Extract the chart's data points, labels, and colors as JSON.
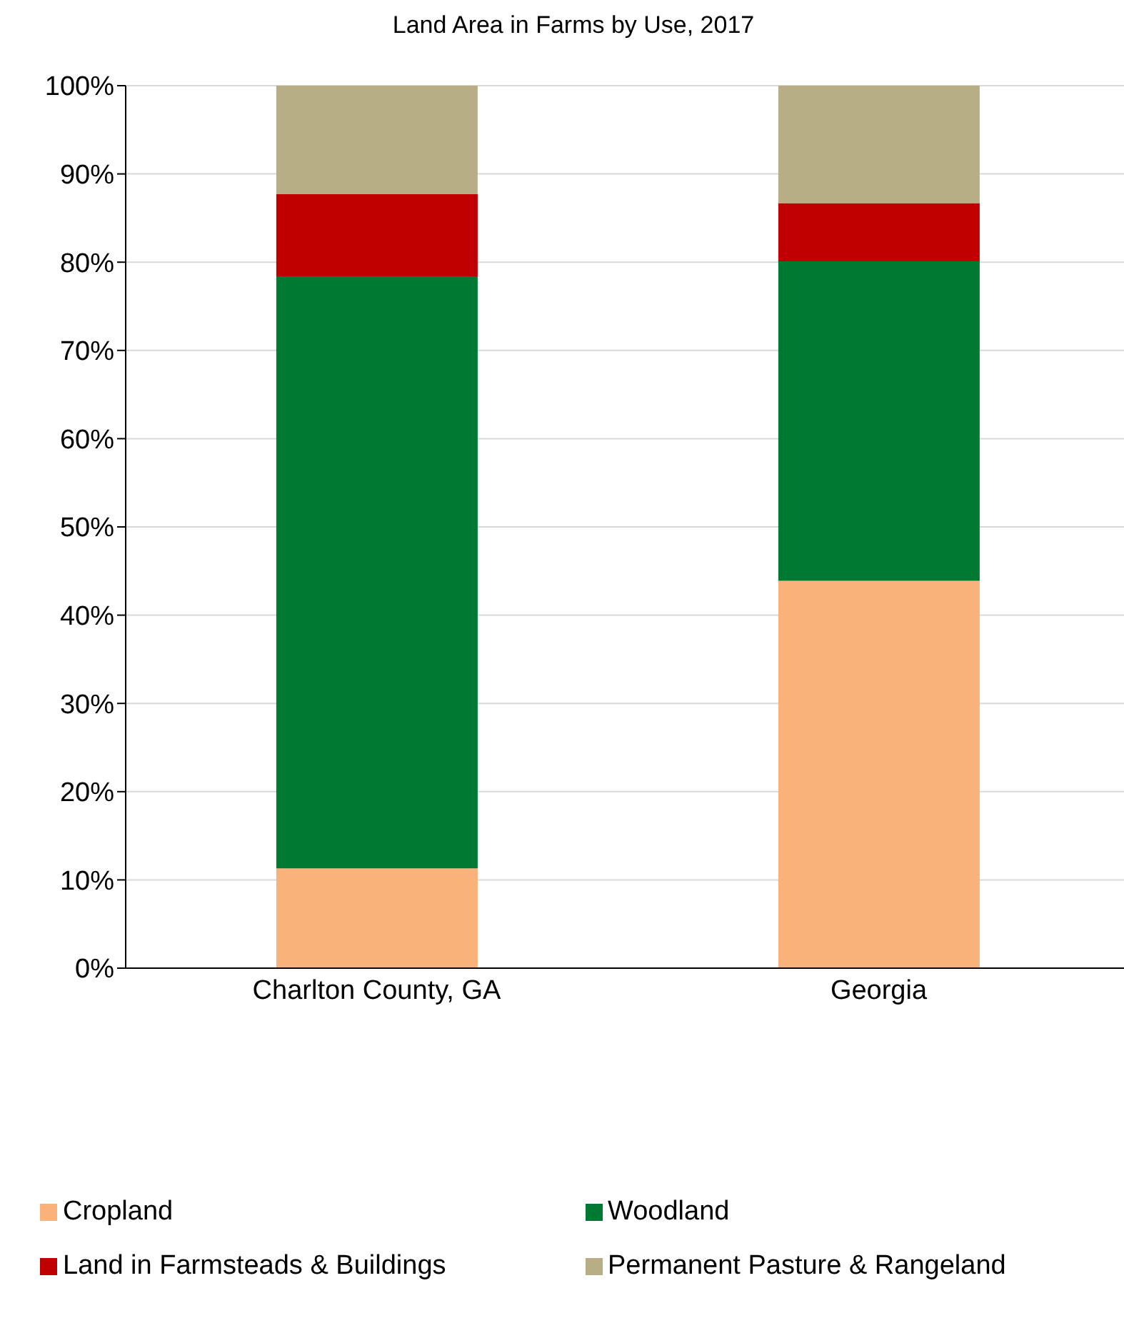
{
  "chart_data": {
    "type": "bar",
    "title": "Land Area in Farms by Use, 2017",
    "categories": [
      "Charlton County, GA",
      "Georgia"
    ],
    "stacked": true,
    "series": [
      {
        "name": "Cropland",
        "color": "#f9b27a",
        "values": [
          11.3,
          43.9
        ]
      },
      {
        "name": "Woodland",
        "color": "#007a33",
        "values": [
          67.1,
          36.2
        ]
      },
      {
        "name": "Land in Farmsteads & Buildings",
        "color": "#c00000",
        "values": [
          9.3,
          6.6
        ]
      },
      {
        "name": "Permanent Pasture & Rangeland",
        "color": "#b8ae85",
        "values": [
          12.3,
          13.3
        ]
      }
    ],
    "ylim": [
      0,
      100
    ],
    "yticks": [
      {
        "value": 0,
        "label": "0%"
      },
      {
        "value": 10,
        "label": "10%"
      },
      {
        "value": 20,
        "label": "20%"
      },
      {
        "value": 30,
        "label": "30%"
      },
      {
        "value": 40,
        "label": "40%"
      },
      {
        "value": 50,
        "label": "50%"
      },
      {
        "value": 60,
        "label": "60%"
      },
      {
        "value": 70,
        "label": "70%"
      },
      {
        "value": 80,
        "label": "80%"
      },
      {
        "value": 90,
        "label": "90%"
      },
      {
        "value": 100,
        "label": "100%"
      }
    ],
    "grid": "y",
    "legend": "bottom"
  }
}
